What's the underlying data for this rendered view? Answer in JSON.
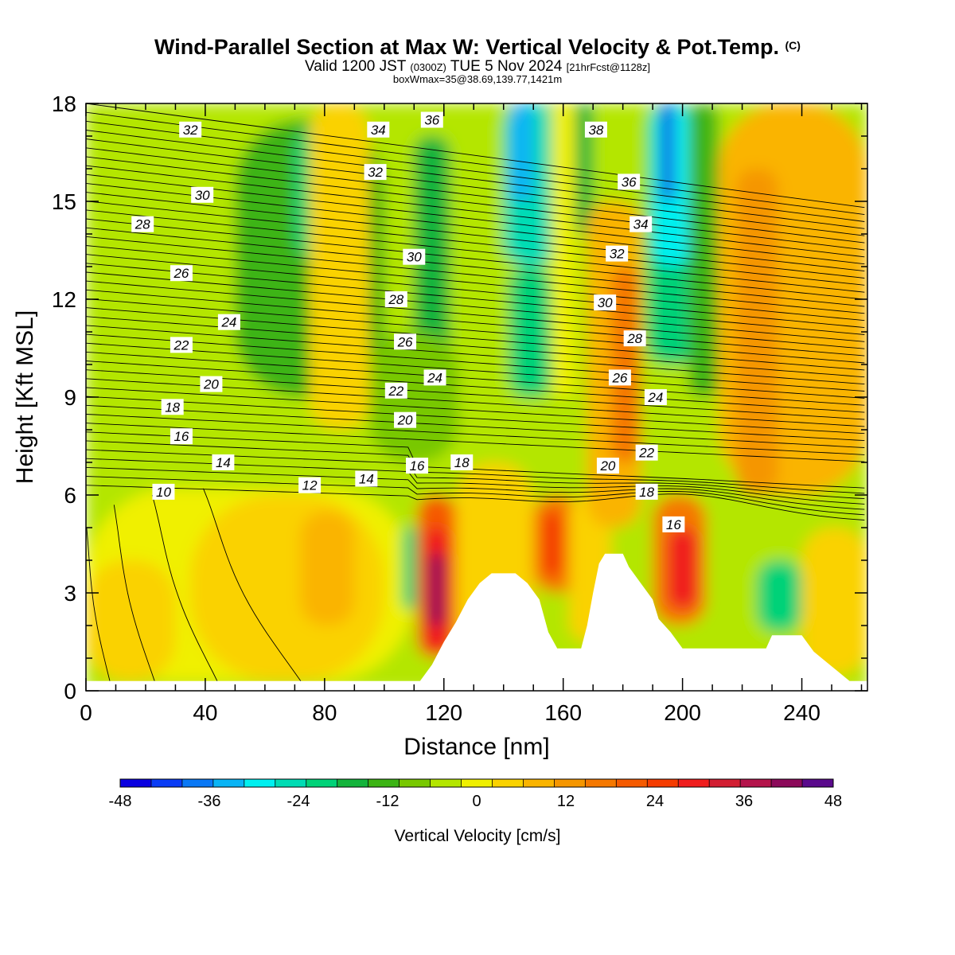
{
  "header": {
    "title_main": "Wind-Parallel Section at Max W: Vertical Velocity & Pot.Temp.",
    "title_mark": "(C)",
    "subtitle_a": "Valid 1200 JST",
    "subtitle_b": "(0300Z)",
    "subtitle_c": "TUE 5 Nov 2024",
    "subtitle_d": "[21hrFcst@1128z]",
    "subtitle2": "boxWmax=35@38.69,139.77,1421m"
  },
  "chart_data": {
    "type": "heatmap",
    "xlabel": "Distance [nm]",
    "ylabel": "Height [Kft MSL]",
    "xlim": [
      0,
      262
    ],
    "ylim": [
      0,
      18
    ],
    "xticks": [
      0,
      40,
      80,
      120,
      160,
      200,
      240
    ],
    "yticks": [
      0,
      3,
      6,
      9,
      12,
      15,
      18
    ],
    "grid": false,
    "colorbar": {
      "label": "Vertical Velocity [cm/s]",
      "min": -48,
      "max": 48,
      "step": 4,
      "tick_labels": [
        -48,
        -36,
        -24,
        -12,
        0,
        12,
        24,
        36,
        48
      ],
      "colors": [
        "#0a00e0",
        "#0a3cf5",
        "#0a78f5",
        "#0ab4f5",
        "#00f0f0",
        "#00dcb4",
        "#00d278",
        "#14b43c",
        "#3cb414",
        "#78c800",
        "#b4e600",
        "#f0f000",
        "#fad200",
        "#fab400",
        "#f59600",
        "#f57800",
        "#f55a00",
        "#f53c00",
        "#f01e1e",
        "#d21e32",
        "#b4144b",
        "#8c0a5a",
        "#5a0a8c"
      ]
    },
    "cells": [
      {
        "v": -6,
        "x0": 0,
        "x1": 262,
        "y0": 0,
        "y1": 18
      },
      {
        "v": -14,
        "x0": 50,
        "x1": 100,
        "y0": 9,
        "y1": 17.5
      },
      {
        "v": -20,
        "x0": 70,
        "x1": 95,
        "y0": 13,
        "y1": 17.5
      },
      {
        "v": -16,
        "x0": 110,
        "x1": 122,
        "y0": 8,
        "y1": 17
      },
      {
        "v": -10,
        "x0": 95,
        "x1": 125,
        "y0": 7,
        "y1": 11
      },
      {
        "v": 6,
        "x0": 75,
        "x1": 95,
        "y0": 8,
        "y1": 18
      },
      {
        "v": 2,
        "x0": 0,
        "x1": 110,
        "y0": 0.3,
        "y1": 6.2
      },
      {
        "v": 6,
        "x0": 35,
        "x1": 100,
        "y0": 0.3,
        "y1": 6
      },
      {
        "v": 10,
        "x0": 72,
        "x1": 90,
        "y0": 2,
        "y1": 5.5
      },
      {
        "v": 6,
        "x0": 0,
        "x1": 30,
        "y0": 0.3,
        "y1": 4
      },
      {
        "v": -20,
        "x0": 106,
        "x1": 111,
        "y0": 2.5,
        "y1": 5
      },
      {
        "v": 20,
        "x0": 111,
        "x1": 124,
        "y0": 1,
        "y1": 6
      },
      {
        "v": 28,
        "x0": 113,
        "x1": 122,
        "y0": 1.2,
        "y1": 5
      },
      {
        "v": 40,
        "x0": 115,
        "x1": 120,
        "y0": 2,
        "y1": 4.2
      },
      {
        "v": 4,
        "x0": 124,
        "x1": 150,
        "y0": 0.3,
        "y1": 7
      },
      {
        "v": -26,
        "x0": 140,
        "x1": 158,
        "y0": 13,
        "y1": 18
      },
      {
        "v": -34,
        "x0": 142,
        "x1": 150,
        "y0": 15,
        "y1": 18
      },
      {
        "v": -20,
        "x0": 142,
        "x1": 156,
        "y0": 9,
        "y1": 13
      },
      {
        "v": 2,
        "x0": 156,
        "x1": 164,
        "y0": 9,
        "y1": 18
      },
      {
        "v": -18,
        "x0": 164,
        "x1": 170,
        "y0": 14,
        "y1": 18
      },
      {
        "v": 16,
        "x0": 150,
        "x1": 166,
        "y0": 3,
        "y1": 6
      },
      {
        "v": 24,
        "x0": 153,
        "x1": 160,
        "y0": 3.5,
        "y1": 5.5
      },
      {
        "v": 6,
        "x0": 162,
        "x1": 176,
        "y0": 1.5,
        "y1": 6
      },
      {
        "v": 10,
        "x0": 168,
        "x1": 186,
        "y0": 5,
        "y1": 15
      },
      {
        "v": 16,
        "x0": 176,
        "x1": 186,
        "y0": 7,
        "y1": 13
      },
      {
        "v": -22,
        "x0": 188,
        "x1": 205,
        "y0": 10,
        "y1": 18
      },
      {
        "v": -30,
        "x0": 190,
        "x1": 202,
        "y0": 13,
        "y1": 18
      },
      {
        "v": -44,
        "x0": 193,
        "x1": 197,
        "y0": 15,
        "y1": 18
      },
      {
        "v": -12,
        "x0": 202,
        "x1": 212,
        "y0": 9,
        "y1": 18
      },
      {
        "v": 18,
        "x0": 190,
        "x1": 208,
        "y0": 2,
        "y1": 6
      },
      {
        "v": 28,
        "x0": 195,
        "x1": 205,
        "y0": 2.5,
        "y1": 5
      },
      {
        "v": 8,
        "x0": 212,
        "x1": 262,
        "y0": 6,
        "y1": 18
      },
      {
        "v": 12,
        "x0": 218,
        "x1": 232,
        "y0": 6,
        "y1": 16
      },
      {
        "v": -20,
        "x0": 225,
        "x1": 240,
        "y0": 1.8,
        "y1": 4
      },
      {
        "v": 6,
        "x0": 240,
        "x1": 262,
        "y0": 0.5,
        "y1": 5
      }
    ],
    "terrain": [
      [
        0,
        0.3
      ],
      [
        112,
        0.3
      ],
      [
        116,
        0.8
      ],
      [
        120,
        1.5
      ],
      [
        124,
        2.1
      ],
      [
        128,
        2.8
      ],
      [
        132,
        3.3
      ],
      [
        136,
        3.6
      ],
      [
        144,
        3.6
      ],
      [
        148,
        3.3
      ],
      [
        152,
        2.8
      ],
      [
        155,
        1.8
      ],
      [
        158,
        1.3
      ],
      [
        166,
        1.3
      ],
      [
        168,
        2.0
      ],
      [
        170,
        3.0
      ],
      [
        172,
        3.9
      ],
      [
        174,
        4.2
      ],
      [
        180,
        4.2
      ],
      [
        182,
        3.8
      ],
      [
        186,
        3.3
      ],
      [
        190,
        2.8
      ],
      [
        192,
        2.2
      ],
      [
        196,
        1.8
      ],
      [
        200,
        1.3
      ],
      [
        228,
        1.3
      ],
      [
        230,
        1.7
      ],
      [
        240,
        1.7
      ],
      [
        244,
        1.2
      ],
      [
        248,
        0.9
      ],
      [
        252,
        0.6
      ],
      [
        256,
        0.3
      ],
      [
        262,
        0.3
      ]
    ],
    "contour_labels": [
      {
        "text": "32",
        "x": 35,
        "y": 17.2
      },
      {
        "text": "34",
        "x": 98,
        "y": 17.2
      },
      {
        "text": "36",
        "x": 116,
        "y": 17.5
      },
      {
        "text": "38",
        "x": 171,
        "y": 17.2
      },
      {
        "text": "32",
        "x": 97,
        "y": 15.9
      },
      {
        "text": "30",
        "x": 39,
        "y": 15.2
      },
      {
        "text": "36",
        "x": 182,
        "y": 15.6
      },
      {
        "text": "28",
        "x": 19,
        "y": 14.3
      },
      {
        "text": "34",
        "x": 186,
        "y": 14.3
      },
      {
        "text": "30",
        "x": 110,
        "y": 13.3
      },
      {
        "text": "32",
        "x": 178,
        "y": 13.4
      },
      {
        "text": "26",
        "x": 32,
        "y": 12.8
      },
      {
        "text": "28",
        "x": 104,
        "y": 12.0
      },
      {
        "text": "30",
        "x": 174,
        "y": 11.9
      },
      {
        "text": "24",
        "x": 48,
        "y": 11.3
      },
      {
        "text": "22",
        "x": 32,
        "y": 10.6
      },
      {
        "text": "26",
        "x": 107,
        "y": 10.7
      },
      {
        "text": "28",
        "x": 184,
        "y": 10.8
      },
      {
        "text": "24",
        "x": 117,
        "y": 9.6
      },
      {
        "text": "26",
        "x": 179,
        "y": 9.6
      },
      {
        "text": "20",
        "x": 42,
        "y": 9.4
      },
      {
        "text": "22",
        "x": 104,
        "y": 9.2
      },
      {
        "text": "24",
        "x": 191,
        "y": 9.0
      },
      {
        "text": "18",
        "x": 29,
        "y": 8.7
      },
      {
        "text": "20",
        "x": 107,
        "y": 8.3
      },
      {
        "text": "16",
        "x": 32,
        "y": 7.8
      },
      {
        "text": "22",
        "x": 188,
        "y": 7.3
      },
      {
        "text": "14",
        "x": 46,
        "y": 7.0
      },
      {
        "text": "18",
        "x": 126,
        "y": 7.0
      },
      {
        "text": "20",
        "x": 175,
        "y": 6.9
      },
      {
        "text": "16",
        "x": 111,
        "y": 6.9
      },
      {
        "text": "14",
        "x": 94,
        "y": 6.5
      },
      {
        "text": "12",
        "x": 75,
        "y": 6.3
      },
      {
        "text": "18",
        "x": 188,
        "y": 6.1
      },
      {
        "text": "10",
        "x": 26,
        "y": 6.1
      },
      {
        "text": "16",
        "x": 197,
        "y": 5.1
      }
    ]
  }
}
